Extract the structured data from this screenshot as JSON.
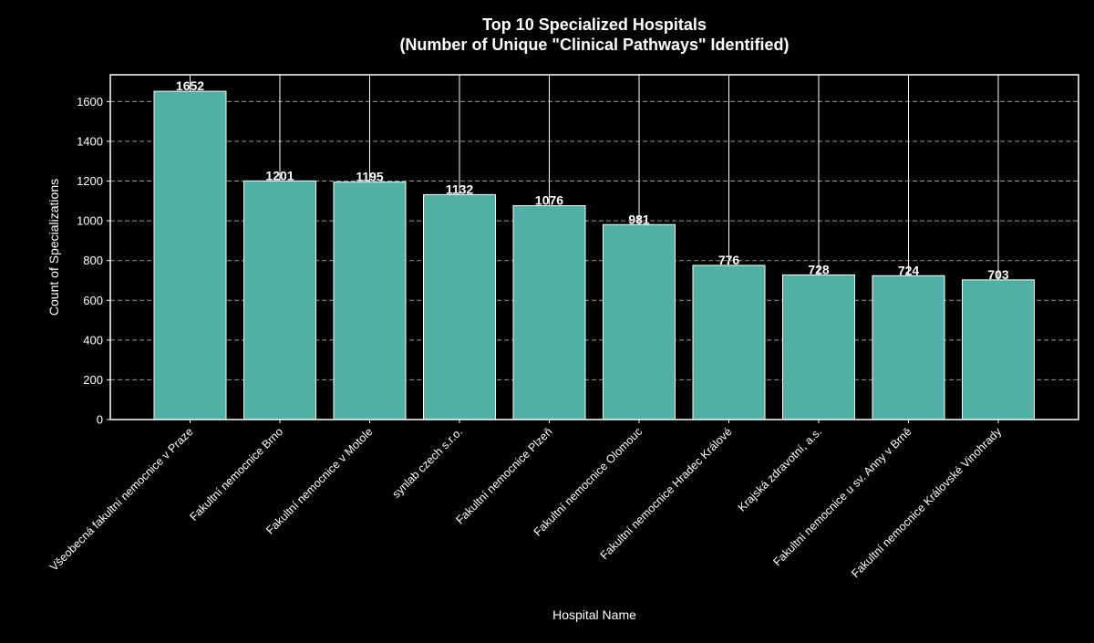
{
  "chart_data": {
    "type": "bar",
    "title": "Top 10 Specialized Hospitals\n(Number of Unique \"Clinical Pathways\" Identified)",
    "title_lines": [
      "Top 10 Specialized Hospitals",
      "(Number of Unique \"Clinical Pathways\" Identified)"
    ],
    "xlabel": "Hospital Name",
    "ylabel": "Count of Specializations",
    "categories": [
      "Všeobecná fakultní nemocnice v Praze",
      "Fakultní nemocnice Brno",
      "Fakultní nemocnice v Motole",
      "synlab czech s.r.o.",
      "Fakultní nemocnice Plzeň",
      "Fakultní nemocnice Olomouc",
      "Fakultní nemocnice Hradec Králové",
      "Krajská zdravotní, a.s.",
      "Fakultní nemocnice u sv. Anny v Brně",
      "Fakultní nemocnice Královské Vinohrady"
    ],
    "values": [
      1652,
      1201,
      1195,
      1132,
      1076,
      981,
      776,
      728,
      724,
      703
    ],
    "data_labels": [
      "1652",
      "1201",
      "1195",
      "1132",
      "1076",
      "981",
      "776",
      "728",
      "724",
      "703"
    ],
    "ylim": [
      0,
      1735
    ],
    "yticks": [
      0,
      200,
      400,
      600,
      800,
      1000,
      1200,
      1400,
      1600
    ],
    "ytick_labels": [
      "0",
      "200",
      "400",
      "600",
      "800",
      "1000",
      "1200",
      "1400",
      "1600"
    ],
    "grid": {
      "y": "dashed",
      "x": "solid"
    },
    "colors": {
      "background": "#000000",
      "bar": "#4fb0a3",
      "bar_edge": "#ffffff",
      "text": "#ffffff",
      "grid": "#999999"
    }
  }
}
